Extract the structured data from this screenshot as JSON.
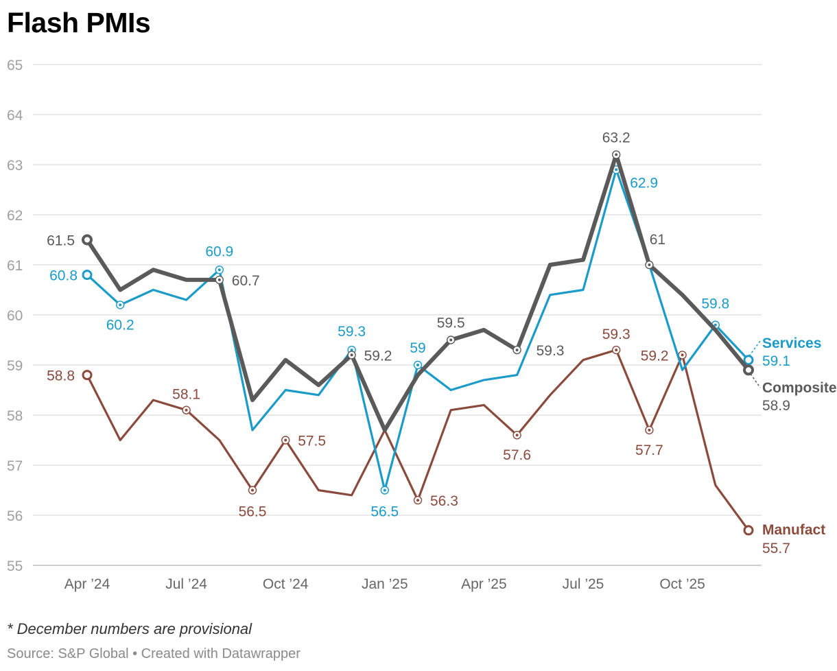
{
  "title": "Flash PMIs",
  "note": "* December numbers are provisional",
  "source": "Source: S&P Global • Created with Datawrapper",
  "chart_data": {
    "type": "line",
    "title": "Flash PMIs",
    "xlabel": "",
    "ylabel": "",
    "ylim": [
      55,
      65
    ],
    "y_ticks": [
      55,
      56,
      57,
      58,
      59,
      60,
      61,
      62,
      63,
      64,
      65
    ],
    "x_ticks": [
      {
        "label": "Apr ’24",
        "index": 0
      },
      {
        "label": "Jul ’24",
        "index": 3
      },
      {
        "label": "Oct ’24",
        "index": 6
      },
      {
        "label": "Jan ’25",
        "index": 9
      },
      {
        "label": "Apr ’25",
        "index": 12
      },
      {
        "label": "Jul ’25",
        "index": 15
      },
      {
        "label": "Oct ’25",
        "index": 18
      }
    ],
    "categories": [
      "Apr 24",
      "May 24",
      "Jun 24",
      "Jul 24",
      "Aug 24",
      "Sep 24",
      "Oct 24",
      "Nov 24",
      "Dec 24",
      "Jan 25",
      "Feb 25",
      "Mar 25",
      "Apr 25",
      "May 25",
      "Jun 25",
      "Jul 25",
      "Aug 25",
      "Sep 25",
      "Oct 25",
      "Nov 25",
      "Dec 25"
    ],
    "series": [
      {
        "name": "Services",
        "color": "#1a9bc9",
        "values": [
          60.8,
          60.2,
          60.5,
          60.3,
          60.9,
          57.7,
          58.5,
          58.4,
          59.3,
          56.5,
          59.0,
          58.5,
          58.7,
          58.8,
          60.4,
          60.5,
          62.9,
          61.0,
          58.9,
          59.8,
          59.1
        ],
        "annotations": [
          {
            "index": 0,
            "label": "60.8"
          },
          {
            "index": 1,
            "label": "60.2"
          },
          {
            "index": 4,
            "label": "60.9"
          },
          {
            "index": 8,
            "label": "59.3"
          },
          {
            "index": 9,
            "label": "56.5"
          },
          {
            "index": 10,
            "label": "59"
          },
          {
            "index": 16,
            "label": "62.9"
          },
          {
            "index": 19,
            "label": "59.8"
          },
          {
            "index": 20,
            "label": "59.1"
          }
        ]
      },
      {
        "name": "Composite",
        "color": "#5a5a5a",
        "values": [
          61.5,
          60.5,
          60.9,
          60.7,
          60.7,
          58.3,
          59.1,
          58.6,
          59.2,
          57.7,
          58.8,
          59.5,
          59.7,
          59.3,
          61.0,
          61.1,
          63.2,
          61.0,
          60.4,
          59.7,
          58.9
        ],
        "annotations": [
          {
            "index": 0,
            "label": "61.5"
          },
          {
            "index": 4,
            "label": "60.7"
          },
          {
            "index": 8,
            "label": "59.2"
          },
          {
            "index": 11,
            "label": "59.5"
          },
          {
            "index": 13,
            "label": "59.3"
          },
          {
            "index": 16,
            "label": "63.2"
          },
          {
            "index": 17,
            "label": "61"
          },
          {
            "index": 20,
            "label": "58.9"
          }
        ]
      },
      {
        "name": "Manufacturing",
        "display_name": "Manufact",
        "color": "#8a4a3c",
        "values": [
          58.8,
          57.5,
          58.3,
          58.1,
          57.5,
          56.5,
          57.5,
          56.5,
          56.4,
          57.7,
          56.3,
          58.1,
          58.2,
          57.6,
          58.4,
          59.1,
          59.3,
          57.7,
          59.2,
          56.6,
          55.7
        ],
        "annotations": [
          {
            "index": 0,
            "label": "58.8"
          },
          {
            "index": 3,
            "label": "58.1"
          },
          {
            "index": 5,
            "label": "56.5"
          },
          {
            "index": 6,
            "label": "57.5"
          },
          {
            "index": 10,
            "label": "56.3"
          },
          {
            "index": 13,
            "label": "57.6"
          },
          {
            "index": 16,
            "label": "59.3"
          },
          {
            "index": 17,
            "label": "57.7"
          },
          {
            "index": 18,
            "label": "59.2"
          },
          {
            "index": 20,
            "label": "55.7"
          }
        ]
      }
    ]
  }
}
